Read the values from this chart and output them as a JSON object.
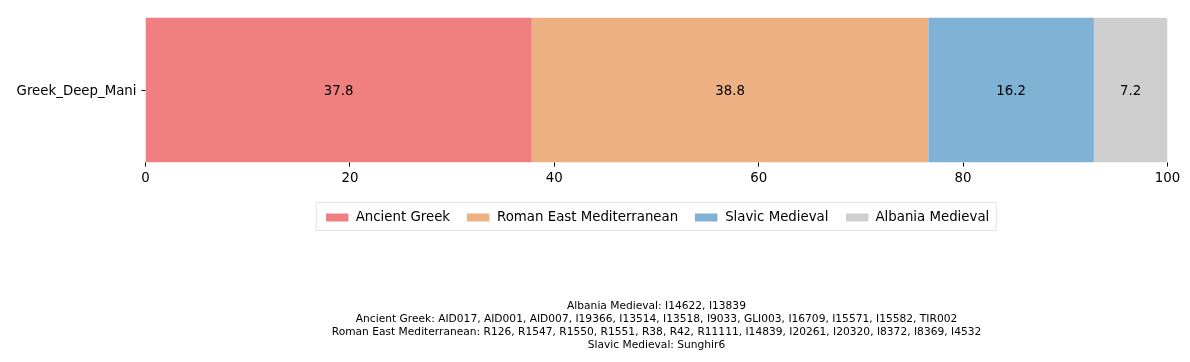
{
  "chart_data": {
    "type": "bar",
    "orientation": "horizontal",
    "stacked": true,
    "categories": [
      "Greek_Deep_Mani"
    ],
    "series": [
      {
        "name": "Ancient Greek",
        "color": "#f08080",
        "values": [
          37.8
        ]
      },
      {
        "name": "Roman East Mediterranean",
        "color": "#edb183",
        "values": [
          38.8
        ]
      },
      {
        "name": "Slavic Medieval",
        "color": "#7fb2d5",
        "values": [
          16.2
        ]
      },
      {
        "name": "Albania Medieval",
        "color": "#cecece",
        "values": [
          7.2
        ]
      }
    ],
    "xlim": [
      0,
      100
    ],
    "xticks": [
      0,
      20,
      40,
      60,
      80,
      100
    ],
    "grid": false,
    "legend": "bottom",
    "data_labels": true,
    "annotations": [
      "Albania Medieval: I14622, I13839",
      "Ancient Greek: AID017, AID001, AID007, I19366, I13514, I13518, I9033, GLI003, I16709, I15571, I15582, TIR002",
      "Roman East Mediterranean: R126, R1547, R1550, R1551, R38, R42, R11111, I14839, I20261, I20320, I8372, I8369, I4532",
      "Slavic Medieval: Sunghir6"
    ]
  }
}
